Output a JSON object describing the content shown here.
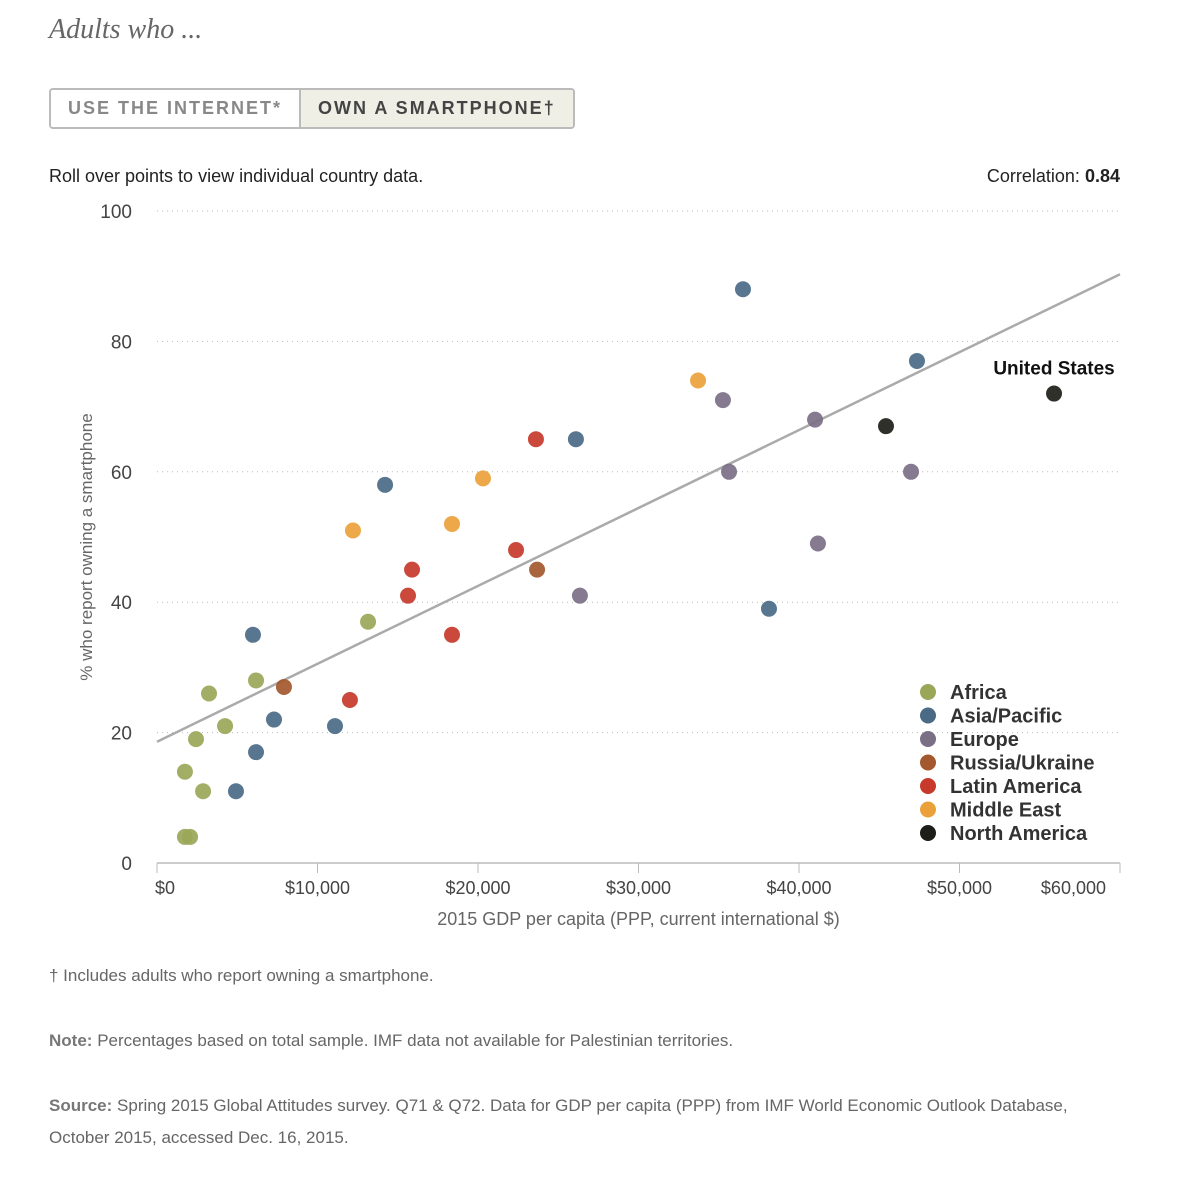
{
  "header": {
    "title": "Adults who ...",
    "tabs": [
      "USE THE INTERNET*",
      "OWN A SMARTPHONE†"
    ]
  },
  "instructions": "Roll over points to view individual country data.",
  "correlation": {
    "label": "Correlation:",
    "value": 0.84
  },
  "chart_data": {
    "type": "scatter",
    "xlabel": "2015 GDP per capita (PPP, current international $)",
    "ylabel": "% who report owning a smartphone",
    "xlim": [
      0,
      60000
    ],
    "ylim": [
      0,
      100
    ],
    "xticks": [
      {
        "value": 0,
        "label": "$0"
      },
      {
        "value": 10000,
        "label": "$10,000"
      },
      {
        "value": 20000,
        "label": "$20,000"
      },
      {
        "value": 30000,
        "label": "$30,000"
      },
      {
        "value": 40000,
        "label": "$40,000"
      },
      {
        "value": 50000,
        "label": "$50,000"
      },
      {
        "value": 60000,
        "label": "$60,000"
      }
    ],
    "yticks": [
      0,
      20,
      40,
      60,
      80,
      100
    ],
    "grid": true,
    "legend": "lower right",
    "trendline": {
      "x": [
        0,
        60000
      ],
      "y": [
        18.6,
        90.3
      ],
      "color": "#aaaaaa"
    },
    "annotations": [
      {
        "text": "United States"
      }
    ],
    "series": [
      {
        "name": "Africa",
        "color": "#9aa758",
        "x": [
          1740,
          2430,
          2870,
          3240,
          4240,
          6170,
          13150,
          1740,
          2060
        ],
        "values": [
          14,
          19,
          11,
          26,
          21,
          28,
          37,
          4,
          4
        ]
      },
      {
        "name": "Asia/Pacific",
        "color": "#4a6a86",
        "x": [
          4920,
          5980,
          6170,
          7290,
          11090,
          14210,
          26100,
          36510,
          38130,
          47350
        ],
        "values": [
          11,
          35,
          17,
          22,
          21,
          58,
          65,
          88,
          39,
          77
        ]
      },
      {
        "name": "Europe",
        "color": "#7b6f86",
        "x": [
          26350,
          35260,
          35640,
          41000,
          41180,
          46980
        ],
        "values": [
          41,
          71,
          60,
          68,
          49,
          60
        ]
      },
      {
        "name": "Russia/Ukraine",
        "color": "#a3582e",
        "x": [
          7910,
          23680
        ],
        "values": [
          27,
          45
        ]
      },
      {
        "name": "Latin America",
        "color": "#c7392b",
        "x": [
          12020,
          15640,
          15890,
          18380,
          22370,
          23610
        ],
        "values": [
          25,
          41,
          45,
          35,
          48,
          65
        ]
      },
      {
        "name": "Middle East",
        "color": "#eba13a",
        "x": [
          12210,
          18380,
          20310,
          33710
        ],
        "values": [
          51,
          52,
          59,
          74
        ]
      },
      {
        "name": "North America",
        "color": "#1e1e18",
        "x": [
          45420,
          55890
        ],
        "values": [
          67,
          72
        ]
      }
    ]
  },
  "footnotes": {
    "dagger": "† Includes adults who report owning a smartphone.",
    "note_label": "Note:",
    "note": "Percentages based on total sample. IMF data not available for Palestinian territories.",
    "source_label": "Source:",
    "source": "Spring 2015 Global Attitudes survey. Q71 & Q72. Data for GDP per capita (PPP) from IMF World Economic Outlook Database, October 2015, accessed Dec. 16, 2015."
  }
}
